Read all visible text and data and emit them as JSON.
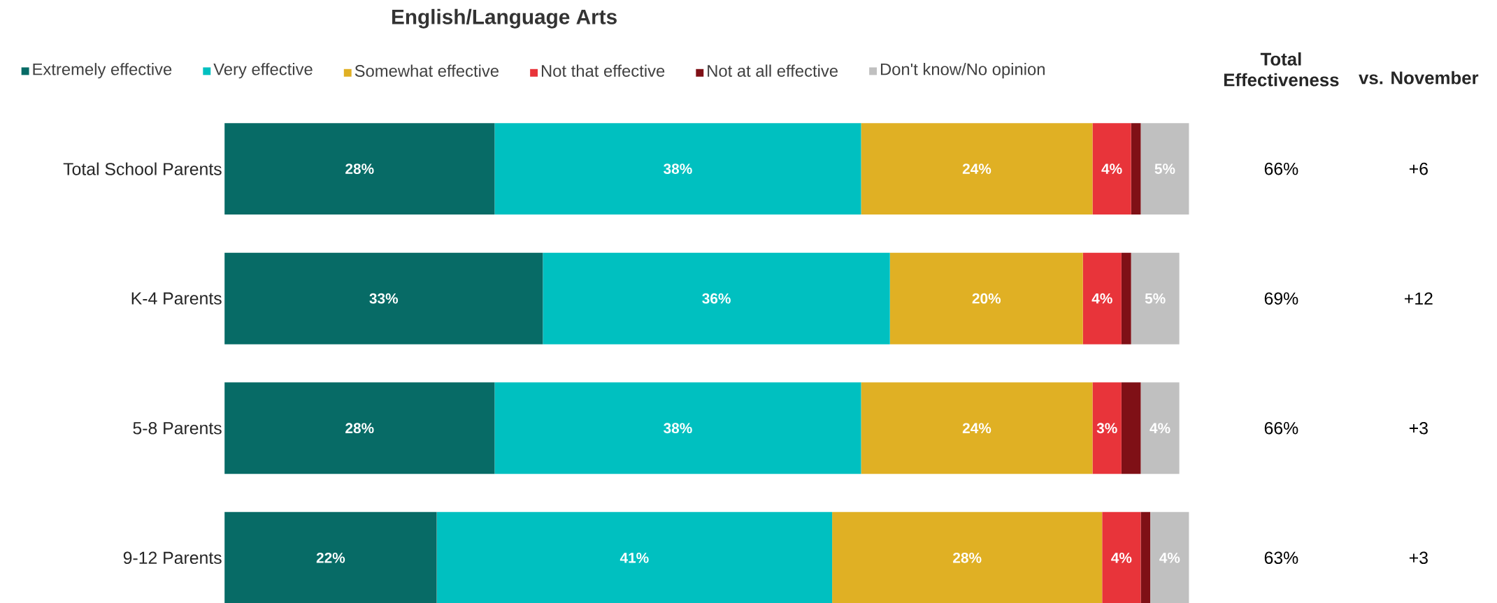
{
  "chart_data": {
    "type": "bar",
    "orientation": "horizontal",
    "stacked": true,
    "title": "English/Language Arts",
    "categories": [
      "Total School Parents",
      "K-4 Parents",
      "5-8 Parents",
      "9-12 Parents"
    ],
    "legend": "top",
    "tick_labels": "y",
    "xlim": [
      0,
      100
    ],
    "series": [
      {
        "name": "Extremely effective",
        "color": "#076b66",
        "values": [
          28,
          33,
          28,
          22
        ],
        "value_labels": [
          "28%",
          "33%",
          "28%",
          "22%"
        ]
      },
      {
        "name": "Very effective",
        "color": "#00c0c0",
        "values": [
          38,
          36,
          38,
          41
        ],
        "value_labels": [
          "38%",
          "36%",
          "38%",
          "41%"
        ]
      },
      {
        "name": "Somewhat effective",
        "color": "#e0b024",
        "values": [
          24,
          20,
          24,
          28
        ],
        "value_labels": [
          "24%",
          "20%",
          "24%",
          "28%"
        ]
      },
      {
        "name": "Not that effective",
        "color": "#e8343a",
        "values": [
          4,
          4,
          3,
          4
        ],
        "value_labels": [
          "4%",
          "4%",
          "3%",
          "4%"
        ]
      },
      {
        "name": "Not at all effective",
        "color": "#7f1016",
        "values": [
          1,
          1,
          2,
          1
        ],
        "value_labels": [
          null,
          null,
          null,
          null
        ]
      },
      {
        "name": "Don't know/No opinion",
        "color": "#c0c0c0",
        "values": [
          5,
          5,
          4,
          4
        ],
        "value_labels": [
          "5%",
          "5%",
          "4%",
          "4%"
        ]
      }
    ],
    "annotations": [
      "Total Effectiveness",
      "vs. November",
      "66%",
      "+6",
      "69%",
      "+12",
      "66%",
      "+3",
      "63%",
      "+3"
    ]
  }
}
